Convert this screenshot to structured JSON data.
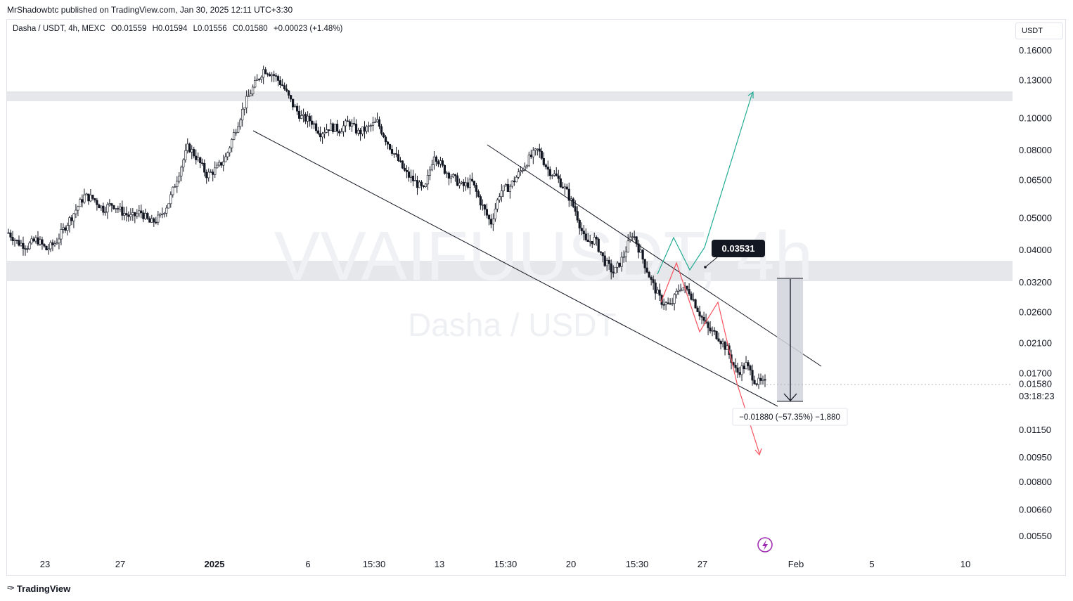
{
  "header": {
    "publish_line": "MrShadowbtc published on TradingView.com, Jan 30, 2025 12:11 UTC+3:30"
  },
  "symbol": {
    "name": "Dasha / USDT, 4h, MEXC",
    "open": "O0.01559",
    "high": "H0.01594",
    "low": "L0.01556",
    "close": "C0.01580",
    "change": "+0.00023 (+1.48%)"
  },
  "currency_button": "USDT",
  "watermark": {
    "ticker": "VVAIFUUSDT, 4h",
    "pair": "Dasha / USDT"
  },
  "footer": {
    "brand": "TradingView",
    "logo_icon": "tradingview-logo-icon"
  },
  "colors": {
    "candle": "#131722",
    "bull_projection": "#22ab94",
    "bear_projection": "#f7525f",
    "zone": "#e6e7ea",
    "measure_box": "#d1d4dc"
  },
  "chart_data": {
    "type": "candlestick",
    "y_scale": "log",
    "y_ticks": [
      "0.16000",
      "0.13000",
      "0.10000",
      "0.08000",
      "0.06500",
      "0.05000",
      "0.04000",
      "0.03200",
      "0.02600",
      "0.02100",
      "0.01700",
      "0.01580",
      "0.01150",
      "0.00950",
      "0.00800",
      "0.00660",
      "0.00550"
    ],
    "x_ticks": [
      "23",
      "27",
      "2025",
      "6",
      "15:30",
      "13",
      "15:30",
      "20",
      "15:30",
      "27",
      "Feb",
      "5",
      "10"
    ],
    "last_price": "0.01580",
    "countdown": "03:18:23",
    "annotations": {
      "target_price": "0.03531",
      "measure": "−0.01880 (−57.35%) −1,880"
    },
    "price_path": [
      0.045,
      0.042,
      0.041,
      0.043,
      0.04,
      0.042,
      0.047,
      0.052,
      0.058,
      0.057,
      0.053,
      0.055,
      0.052,
      0.05,
      0.052,
      0.048,
      0.05,
      0.056,
      0.068,
      0.082,
      0.075,
      0.067,
      0.07,
      0.076,
      0.092,
      0.11,
      0.125,
      0.14,
      0.135,
      0.125,
      0.11,
      0.1,
      0.098,
      0.09,
      0.094,
      0.092,
      0.097,
      0.09,
      0.093,
      0.097,
      0.085,
      0.076,
      0.068,
      0.064,
      0.06,
      0.078,
      0.07,
      0.066,
      0.062,
      0.064,
      0.055,
      0.048,
      0.06,
      0.062,
      0.068,
      0.075,
      0.08,
      0.07,
      0.066,
      0.06,
      0.052,
      0.042,
      0.043,
      0.037,
      0.034,
      0.038,
      0.045,
      0.038,
      0.032,
      0.028,
      0.027,
      0.031,
      0.03,
      0.026,
      0.023,
      0.022,
      0.02,
      0.017,
      0.018,
      0.016,
      0.0158
    ]
  }
}
